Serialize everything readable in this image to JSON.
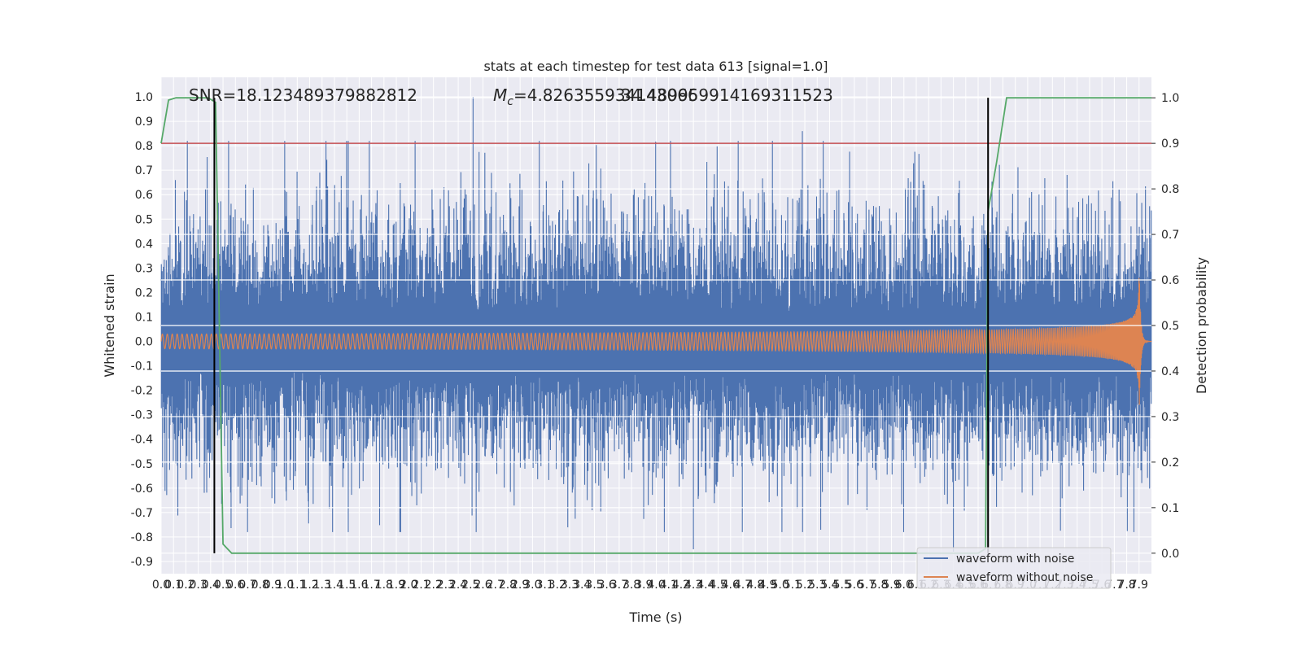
{
  "chart_data": {
    "type": "line",
    "title": "stats at each timestep for test data 613 [signal=1.0]",
    "xlabel": "Time (s)",
    "ylabel": "Whitened strain",
    "y2label": "Detection probability",
    "xlim": [
      0.0,
      8.0
    ],
    "ylim": [
      -0.95,
      1.08
    ],
    "y2lim": [
      -0.045,
      1.045
    ],
    "x_ticks": [
      "0.0",
      "0.1",
      "0.2",
      "0.3",
      "0.4",
      "0.5",
      "0.6",
      "0.7",
      "0.8",
      "0.9",
      "1.0",
      "1.1",
      "1.2",
      "1.3",
      "1.4",
      "1.5",
      "1.6",
      "1.7",
      "1.8",
      "1.9",
      "2.0",
      "2.1",
      "2.2",
      "2.3",
      "2.4",
      "2.5",
      "2.6",
      "2.7",
      "2.8",
      "2.9",
      "3.0",
      "3.1",
      "3.2",
      "3.3",
      "3.4",
      "3.5",
      "3.6",
      "3.7",
      "3.8",
      "3.9",
      "4.0",
      "4.1",
      "4.2",
      "4.3",
      "4.4",
      "4.5",
      "4.6",
      "4.7",
      "4.8",
      "4.9",
      "5.0",
      "5.1",
      "5.2",
      "5.3",
      "5.4",
      "5.5",
      "5.6",
      "5.7",
      "5.8",
      "5.9",
      "6.0",
      "6.1",
      "6.2",
      "6.3",
      "6.4",
      "6.5",
      "6.6",
      "6.7",
      "6.8",
      "6.9",
      "7.0",
      "7.1",
      "7.2",
      "7.3",
      "7.4",
      "7.5",
      "7.6",
      "7.7",
      "7.8",
      "7.9"
    ],
    "y_ticks": [
      "-0.9",
      "-0.8",
      "-0.7",
      "-0.6",
      "-0.5",
      "-0.4",
      "-0.3",
      "-0.2",
      "-0.1",
      "0.0",
      "0.1",
      "0.2",
      "0.3",
      "0.4",
      "0.5",
      "0.6",
      "0.7",
      "0.8",
      "0.9",
      "1.0"
    ],
    "y2_ticks": [
      "0.0",
      "0.1",
      "0.2",
      "0.3",
      "0.4",
      "0.5",
      "0.6",
      "0.7",
      "0.8",
      "0.9",
      "1.0"
    ],
    "annotations": {
      "snr": "SNR=18.123489379882812",
      "mc_symbol": "M",
      "mc_sub": "c",
      "mc_value": "=4.826355934143066",
      "mc_overlap": "34.489959914169311523"
    },
    "series": [
      {
        "name": "waveform with noise",
        "color": "#4c72b0",
        "kind": "noise",
        "amplitude_envelope": [
          0.45,
          0.45
        ],
        "peak_max": 1.0,
        "peak_min": -0.85
      },
      {
        "name": "waveform without noise",
        "color": "#dd8452",
        "kind": "chirp",
        "start_amplitude": 0.03,
        "peak_amplitude": 0.33,
        "merger_time": 7.9
      },
      {
        "name": "Detection probability",
        "color": "#55a868",
        "axis": "right",
        "x": [
          0.0,
          0.06,
          0.12,
          0.25,
          0.38,
          0.44,
          0.5,
          0.57,
          1.0,
          6.6,
          6.66,
          6.68,
          6.75,
          6.83,
          7.0,
          8.0
        ],
        "values": [
          0.9,
          0.995,
          1.0,
          1.0,
          1.0,
          0.99,
          0.02,
          0.0,
          0.0,
          0.0,
          0.01,
          0.75,
          0.86,
          1.0,
          1.0,
          1.0
        ]
      }
    ],
    "threshold": {
      "value": 0.9,
      "axis": "right",
      "color": "#c44e52"
    },
    "vlines": [
      0.43,
      6.68
    ],
    "legend": {
      "position": "bottom-right",
      "entries": [
        "waveform with noise",
        "waveform without noise"
      ]
    }
  }
}
